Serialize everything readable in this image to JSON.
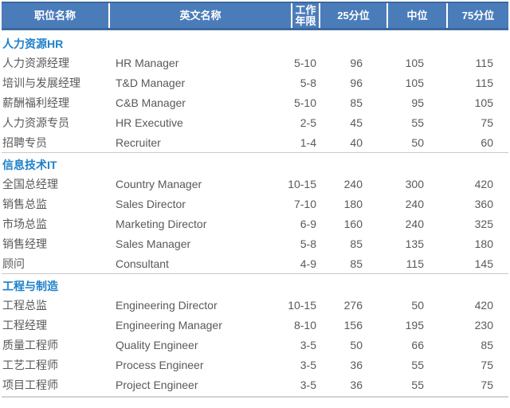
{
  "colors": {
    "header_bg": "#4b7cba",
    "header_border": "#3a689e",
    "header_text": "#ffffff",
    "section_title_text": "#1e81c9",
    "row_text": "#595959",
    "separator_line": "#cacaca",
    "bottom_rule": "#d2d2d2"
  },
  "chart_data": {
    "type": "table",
    "columns": [
      "职位名称",
      "英文名称",
      "工作年限",
      "25分位",
      "中位",
      "75分位"
    ],
    "sections": [
      {
        "title": "人力资源HR",
        "rows": [
          [
            "人力资源经理",
            "HR Manager",
            "5-10",
            "96",
            "105",
            "115"
          ],
          [
            "培训与发展经理",
            "T&D Manager",
            "5-8",
            "96",
            "105",
            "115"
          ],
          [
            "薪酬福利经理",
            "C&B Manager",
            "5-10",
            "85",
            "95",
            "105"
          ],
          [
            "人力资源专员",
            "HR Executive",
            "2-5",
            "45",
            "55",
            "75"
          ],
          [
            "招聘专员",
            "Recruiter",
            "1-4",
            "40",
            "50",
            "60"
          ]
        ]
      },
      {
        "title": "信息技术IT",
        "rows": [
          [
            "全国总经理",
            "Country Manager",
            "10-15",
            "240",
            "300",
            "420"
          ],
          [
            "销售总监",
            "Sales Director",
            "7-10",
            "180",
            "240",
            "360"
          ],
          [
            "市场总监",
            "Marketing Director",
            "6-9",
            "160",
            "240",
            "325"
          ],
          [
            "销售经理",
            "Sales Manager",
            "5-8",
            "85",
            "135",
            "180"
          ],
          [
            "顾问",
            "Consultant",
            "4-9",
            "85",
            "115",
            "145"
          ]
        ]
      },
      {
        "title": "工程与制造",
        "rows": [
          [
            "工程总监",
            "Engineering Director",
            "10-15",
            "276",
            "50",
            "420"
          ],
          [
            "工程经理",
            "Engineering Manager",
            "8-10",
            "156",
            "195",
            "230"
          ],
          [
            "质量工程师",
            "Quality Engineer",
            "3-5",
            "50",
            "66",
            "85"
          ],
          [
            "工艺工程师",
            "Process Engineer",
            "3-5",
            "36",
            "55",
            "75"
          ],
          [
            "项目工程师",
            "Project Engineer",
            "3-5",
            "36",
            "55",
            "75"
          ]
        ]
      }
    ]
  }
}
